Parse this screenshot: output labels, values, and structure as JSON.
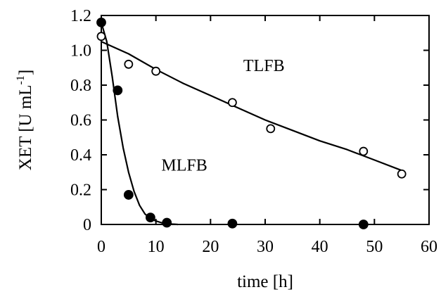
{
  "chart_data": {
    "type": "scatter",
    "title": "",
    "xlabel": "time [h]",
    "ylabel": "XET [U mL",
    "ylabel_superscript": "-1",
    "ylabel_suffix": "]",
    "xlim": [
      0,
      60
    ],
    "ylim": [
      0,
      1.2
    ],
    "x_ticks": [
      0,
      10,
      20,
      30,
      40,
      50,
      60
    ],
    "x_tick_labels": [
      "0",
      "10",
      "20",
      "30",
      "40",
      "50",
      "60"
    ],
    "y_ticks": [
      0,
      0.2,
      0.4,
      0.6,
      0.8,
      1.0,
      1.2
    ],
    "y_tick_labels": [
      "0",
      "0.2",
      "0.4",
      "0.6",
      "0.8",
      "1.0",
      "1.2"
    ],
    "grid": false,
    "legend": "none",
    "series": [
      {
        "name": "TLFB",
        "marker": "open-circle",
        "x": [
          0,
          5,
          10,
          24,
          31,
          48,
          55
        ],
        "y": [
          1.08,
          0.92,
          0.88,
          0.7,
          0.55,
          0.42,
          0.29
        ],
        "fit": {
          "x": [
            0,
            5,
            10,
            15,
            20,
            25,
            30,
            35,
            40,
            45,
            50,
            55
          ],
          "y": [
            1.05,
            0.98,
            0.89,
            0.81,
            0.74,
            0.67,
            0.6,
            0.54,
            0.48,
            0.43,
            0.37,
            0.31
          ]
        }
      },
      {
        "name": "MLFB",
        "marker": "filled-circle",
        "x": [
          0,
          3,
          5,
          9,
          12,
          24,
          48
        ],
        "y": [
          1.16,
          0.77,
          0.17,
          0.04,
          0.01,
          0.005,
          0.0
        ],
        "fit": {
          "x": [
            0,
            1,
            2,
            3,
            4,
            5,
            6,
            7,
            8,
            9,
            10,
            11,
            12,
            13,
            14
          ],
          "y": [
            1.16,
            1.05,
            0.85,
            0.62,
            0.44,
            0.3,
            0.19,
            0.11,
            0.06,
            0.035,
            0.02,
            0.01,
            0.005,
            0.002,
            0.0
          ]
        }
      }
    ],
    "annotations": [
      {
        "text": "TLFB",
        "x": 26,
        "y": 0.88
      },
      {
        "text": "MLFB",
        "x": 11,
        "y": 0.31
      }
    ],
    "colors": {
      "axis": "#000000",
      "line": "#000000",
      "marker_fill_filled": "#000000",
      "marker_fill_open": "#ffffff"
    }
  }
}
